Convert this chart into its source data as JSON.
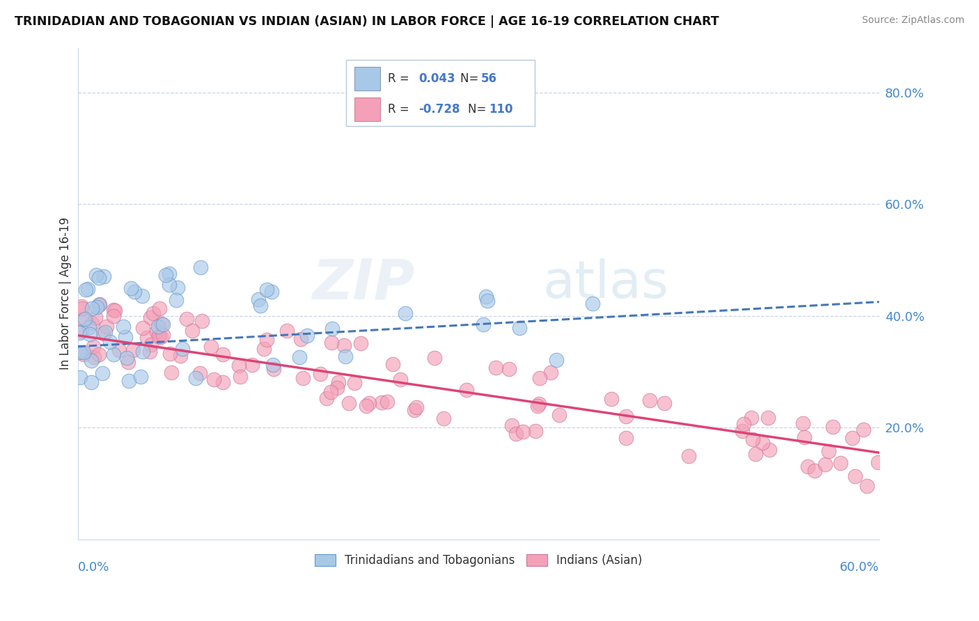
{
  "title": "TRINIDADIAN AND TOBAGONIAN VS INDIAN (ASIAN) IN LABOR FORCE | AGE 16-19 CORRELATION CHART",
  "source": "Source: ZipAtlas.com",
  "ylabel": "In Labor Force | Age 16-19",
  "legend_blue_label": "Trinidadians and Tobagonians",
  "legend_pink_label": "Indians (Asian)",
  "watermark_zip": "ZIP",
  "watermark_atlas": "atlas",
  "xlim": [
    0.0,
    0.6
  ],
  "ylim": [
    0.0,
    0.88
  ],
  "yticks": [
    0.2,
    0.4,
    0.6,
    0.8
  ],
  "ytick_labels": [
    "20.0%",
    "40.0%",
    "60.0%",
    "80.0%"
  ],
  "blue_color": "#a8c8e8",
  "blue_edge_color": "#6699cc",
  "blue_line_color": "#4477bb",
  "pink_color": "#f4a0b8",
  "pink_edge_color": "#cc7799",
  "pink_line_color": "#dd4477",
  "background": "#ffffff",
  "grid_color": "#c8d4e8",
  "blue_r": 0.043,
  "pink_r": -0.728,
  "blue_n": 56,
  "pink_n": 110,
  "blue_line_start_y": 0.345,
  "blue_line_end_y": 0.425,
  "pink_line_start_y": 0.365,
  "pink_line_end_y": 0.155,
  "legend_r_color": "#000000",
  "legend_val_color": "#4477cc",
  "legend_n_color": "#000000",
  "legend_nval_color": "#4477cc"
}
